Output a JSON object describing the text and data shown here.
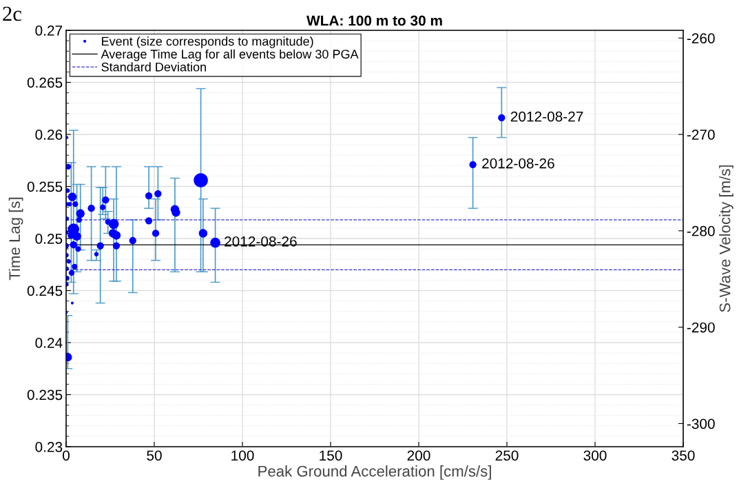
{
  "chart_data": {
    "type": "scatter",
    "title": "WLA: 100 m to 30 m",
    "xlabel": "Peak Ground Acceleration [cm/s/s]",
    "ylabel": "Time Lag [s]",
    "y2label": "S-Wave Velocity [m/s]",
    "xlim": [
      0,
      350
    ],
    "xticks": [
      0,
      50,
      100,
      150,
      200,
      250,
      300,
      350
    ],
    "ylim": [
      0.23,
      0.27
    ],
    "yticks": [
      0.23,
      0.235,
      0.24,
      0.245,
      0.25,
      0.255,
      0.26,
      0.265,
      0.27
    ],
    "y2lim": [
      -302.4,
      -259.2
    ],
    "y2ticks": [
      -300,
      -290,
      -280,
      -270,
      -260
    ],
    "grid": true,
    "legend": "top left",
    "marker": "circle",
    "series": [
      {
        "name": "Event (size corresponds to magnitude)",
        "color": "#0000ff",
        "x": [
          247.0,
          230.7,
          37.8,
          46.9,
          46.9,
          52.1,
          50.8,
          61.7,
          62.3,
          76.4,
          77.7,
          84.6,
          14.3,
          17.2,
          19.4,
          20.8,
          22.4,
          23.7,
          27.0,
          26.6,
          28.5,
          28.5,
          0.5,
          1.2,
          3.5,
          5.2,
          8.1,
          7.4,
          4.2,
          2.9,
          6.1,
          4.2,
          6.8,
          4.8,
          3.1,
          0.0,
          0.1,
          0.3,
          0.2,
          0.2,
          0.3,
          0.2,
          0.1,
          3.5,
          0.9,
          2.0,
          0.9,
          1.5,
          0.6
        ],
        "values": [
          0.2616,
          0.2571,
          0.2498,
          0.2541,
          0.2517,
          0.2543,
          0.2505,
          0.2528,
          0.2525,
          0.2556,
          0.2505,
          0.2496,
          0.2529,
          0.2485,
          0.2493,
          0.253,
          0.2537,
          0.2516,
          0.2514,
          0.2505,
          0.2503,
          0.2493,
          0.2597,
          0.2569,
          0.254,
          0.2533,
          0.2524,
          0.2518,
          0.2509,
          0.2503,
          0.2502,
          0.2494,
          0.249,
          0.2473,
          0.2467,
          0.2493,
          0.2533,
          0.2519,
          0.2506,
          0.2484,
          0.2471,
          0.2456,
          0.2429,
          0.2438,
          0.2386,
          0.2533,
          0.2546,
          0.2478,
          0.2462
        ],
        "sizes": [
          0.25,
          0.25,
          0.25,
          0.25,
          0.25,
          0.25,
          0.25,
          0.36,
          0.36,
          1,
          0.36,
          0.5,
          0.25,
          0.1,
          0.25,
          0.16,
          0.25,
          0.16,
          0.5,
          0.36,
          0.36,
          0.25,
          0.04,
          0.16,
          0.36,
          0.16,
          0.36,
          0.16,
          0.64,
          0.25,
          0.36,
          0.25,
          0.16,
          0.16,
          0.16,
          0.16,
          0.1,
          0.1,
          0.1,
          0.1,
          0.1,
          0.1,
          0.04,
          0.04,
          0.36,
          0.1,
          0.1,
          0.1,
          0.1
        ],
        "errors": [
          [
            0.2597,
            0.2645
          ],
          [
            0.2529,
            0.2597
          ],
          [
            0.2448,
            0.2518
          ],
          [
            0.2529,
            0.2569
          ],
          null,
          [
            0.2518,
            0.2569
          ],
          [
            0.2479,
            0.2538
          ],
          [
            0.2468,
            0.2558
          ],
          null,
          [
            0.2468,
            0.2644
          ],
          [
            0.2468,
            0.2538
          ],
          [
            0.2458,
            0.2529
          ],
          [
            0.2479,
            0.2569
          ],
          [
            0.2479,
            0.2489
          ],
          [
            0.2438,
            0.2549
          ],
          [
            0.2523,
            0.2549
          ],
          [
            0.2519,
            0.2569
          ],
          [
            0.2505,
            0.2526
          ],
          [
            0.2459,
            0.2538
          ],
          null,
          [
            0.2459,
            0.2569
          ],
          null,
          null,
          null,
          null,
          null,
          [
            0.2489,
            0.2552
          ],
          null,
          [
            0.2447,
            0.2604
          ],
          [
            0.2458,
            0.2573
          ],
          [
            0.2468,
            0.2552
          ],
          null,
          null,
          null,
          null,
          null,
          null,
          null,
          null,
          null,
          null,
          null,
          null,
          null,
          [
            0.2375,
            0.2426
          ],
          null,
          null,
          null,
          null
        ]
      }
    ],
    "ref_lines": [
      {
        "axis": "y",
        "value": 0.2494,
        "label": "Average Time Lag for all events below 30 PGA",
        "color": "#000000",
        "line_style": "solid"
      },
      {
        "axis": "y",
        "value": 0.2518,
        "label": "Standard Deviation",
        "color": "#3333cc",
        "line_style": "dashed"
      },
      {
        "axis": "y",
        "value": 0.247,
        "label": null,
        "color": "#3333cc",
        "line_style": "dashed"
      }
    ],
    "annotations": [
      "2c",
      {
        "text": "2012-08-27",
        "x": 247.0,
        "y": 0.2616
      },
      {
        "text": "2012-08-26",
        "x": 230.7,
        "y": 0.2571
      },
      {
        "text": "2012-08-26",
        "x": 84.6,
        "y": 0.2496
      }
    ]
  }
}
